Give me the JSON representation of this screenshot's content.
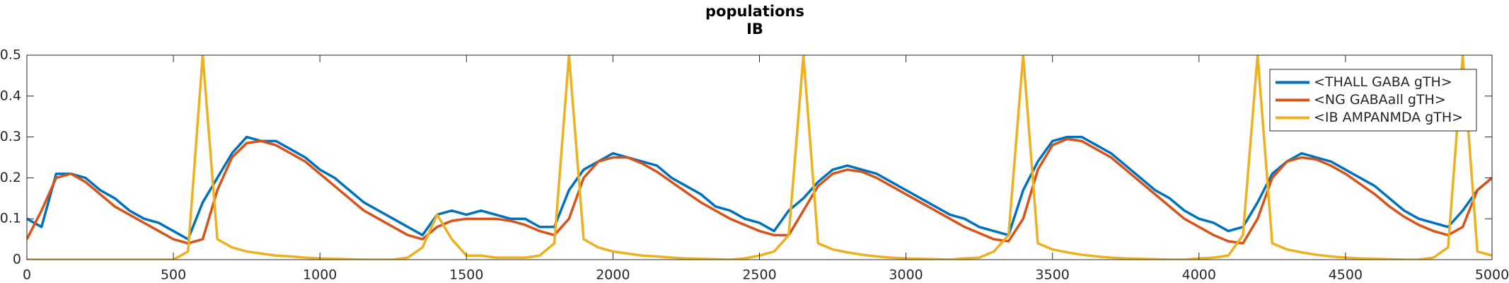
{
  "chart_data": {
    "type": "line",
    "title": "populations",
    "subtitle": "IB",
    "x": [
      0,
      50,
      100,
      150,
      200,
      250,
      300,
      350,
      400,
      450,
      500,
      550,
      600,
      650,
      700,
      750,
      800,
      850,
      900,
      950,
      1000,
      1050,
      1100,
      1150,
      1200,
      1250,
      1300,
      1350,
      1400,
      1450,
      1500,
      1550,
      1600,
      1650,
      1700,
      1750,
      1800,
      1850,
      1900,
      1950,
      2000,
      2050,
      2100,
      2150,
      2200,
      2250,
      2300,
      2350,
      2400,
      2450,
      2500,
      2550,
      2600,
      2650,
      2700,
      2750,
      2800,
      2850,
      2900,
      2950,
      3000,
      3050,
      3100,
      3150,
      3200,
      3250,
      3300,
      3350,
      3400,
      3450,
      3500,
      3550,
      3600,
      3650,
      3700,
      3750,
      3800,
      3850,
      3900,
      3950,
      4000,
      4050,
      4100,
      4150,
      4200,
      4250,
      4300,
      4350,
      4400,
      4450,
      4500,
      4550,
      4600,
      4650,
      4700,
      4750,
      4800,
      4850,
      4900,
      4950,
      5000
    ],
    "series": [
      {
        "name": "<THALL GABA gTH>",
        "color": "#0072bd",
        "values": [
          0.1,
          0.08,
          0.21,
          0.21,
          0.2,
          0.17,
          0.15,
          0.12,
          0.1,
          0.09,
          0.07,
          0.05,
          0.14,
          0.2,
          0.26,
          0.3,
          0.29,
          0.29,
          0.27,
          0.25,
          0.22,
          0.2,
          0.17,
          0.14,
          0.12,
          0.1,
          0.08,
          0.06,
          0.11,
          0.12,
          0.11,
          0.12,
          0.11,
          0.1,
          0.1,
          0.08,
          0.08,
          0.17,
          0.22,
          0.24,
          0.26,
          0.25,
          0.24,
          0.23,
          0.2,
          0.18,
          0.16,
          0.13,
          0.12,
          0.1,
          0.09,
          0.07,
          0.12,
          0.15,
          0.19,
          0.22,
          0.23,
          0.22,
          0.21,
          0.19,
          0.17,
          0.15,
          0.13,
          0.11,
          0.1,
          0.08,
          0.07,
          0.06,
          0.17,
          0.24,
          0.29,
          0.3,
          0.3,
          0.28,
          0.26,
          0.23,
          0.2,
          0.17,
          0.15,
          0.12,
          0.1,
          0.09,
          0.07,
          0.08,
          0.14,
          0.21,
          0.24,
          0.26,
          0.25,
          0.24,
          0.22,
          0.2,
          0.18,
          0.15,
          0.12,
          0.1,
          0.09,
          0.08,
          0.12,
          0.17,
          0.2
        ]
      },
      {
        "name": "<NG GABAall gTH>",
        "color": "#d95319",
        "values": [
          0.05,
          0.12,
          0.2,
          0.21,
          0.19,
          0.16,
          0.13,
          0.11,
          0.09,
          0.07,
          0.05,
          0.04,
          0.05,
          0.17,
          0.25,
          0.285,
          0.29,
          0.28,
          0.26,
          0.24,
          0.21,
          0.18,
          0.15,
          0.12,
          0.1,
          0.08,
          0.06,
          0.05,
          0.08,
          0.095,
          0.1,
          0.1,
          0.1,
          0.095,
          0.085,
          0.07,
          0.06,
          0.1,
          0.2,
          0.24,
          0.25,
          0.25,
          0.235,
          0.215,
          0.19,
          0.165,
          0.14,
          0.12,
          0.1,
          0.085,
          0.07,
          0.06,
          0.06,
          0.12,
          0.18,
          0.21,
          0.22,
          0.215,
          0.2,
          0.18,
          0.16,
          0.14,
          0.12,
          0.1,
          0.08,
          0.065,
          0.05,
          0.045,
          0.1,
          0.22,
          0.28,
          0.295,
          0.29,
          0.27,
          0.25,
          0.22,
          0.19,
          0.16,
          0.13,
          0.1,
          0.08,
          0.06,
          0.045,
          0.04,
          0.1,
          0.2,
          0.24,
          0.25,
          0.245,
          0.23,
          0.21,
          0.185,
          0.16,
          0.13,
          0.105,
          0.085,
          0.07,
          0.06,
          0.08,
          0.17,
          0.2
        ]
      },
      {
        "name": "<IB AMPANMDA gTH>",
        "color": "#edb120",
        "values": [
          0,
          0,
          0,
          0,
          0,
          0,
          0,
          0,
          0,
          0,
          0,
          0.02,
          0.5,
          0.05,
          0.03,
          0.02,
          0.015,
          0.01,
          0.008,
          0.005,
          0.003,
          0.002,
          0.001,
          0,
          0,
          0,
          0.005,
          0.03,
          0.11,
          0.05,
          0.01,
          0.01,
          0.005,
          0.005,
          0.005,
          0.01,
          0.04,
          0.5,
          0.05,
          0.03,
          0.02,
          0.015,
          0.01,
          0.008,
          0.005,
          0.003,
          0.002,
          0.001,
          0,
          0.003,
          0.01,
          0.02,
          0.06,
          0.5,
          0.04,
          0.025,
          0.018,
          0.012,
          0.008,
          0.005,
          0.003,
          0.002,
          0.001,
          0,
          0.003,
          0.005,
          0.02,
          0.06,
          0.5,
          0.04,
          0.025,
          0.018,
          0.012,
          0.008,
          0.005,
          0.003,
          0.002,
          0.001,
          0,
          0,
          0.003,
          0.005,
          0.01,
          0.06,
          0.5,
          0.04,
          0.025,
          0.018,
          0.012,
          0.008,
          0.005,
          0.003,
          0.002,
          0.001,
          0,
          0,
          0.005,
          0.03,
          0.5,
          0.02,
          0.01
        ]
      }
    ],
    "xlim": [
      0,
      5000
    ],
    "xticks": [
      0,
      500,
      1000,
      1500,
      2000,
      2500,
      3000,
      3500,
      4000,
      4500,
      5000
    ],
    "ylim": [
      0,
      0.5
    ],
    "yticks": [
      0,
      0.1,
      0.2,
      0.3,
      0.4,
      0.5
    ],
    "legend": "northeast"
  }
}
